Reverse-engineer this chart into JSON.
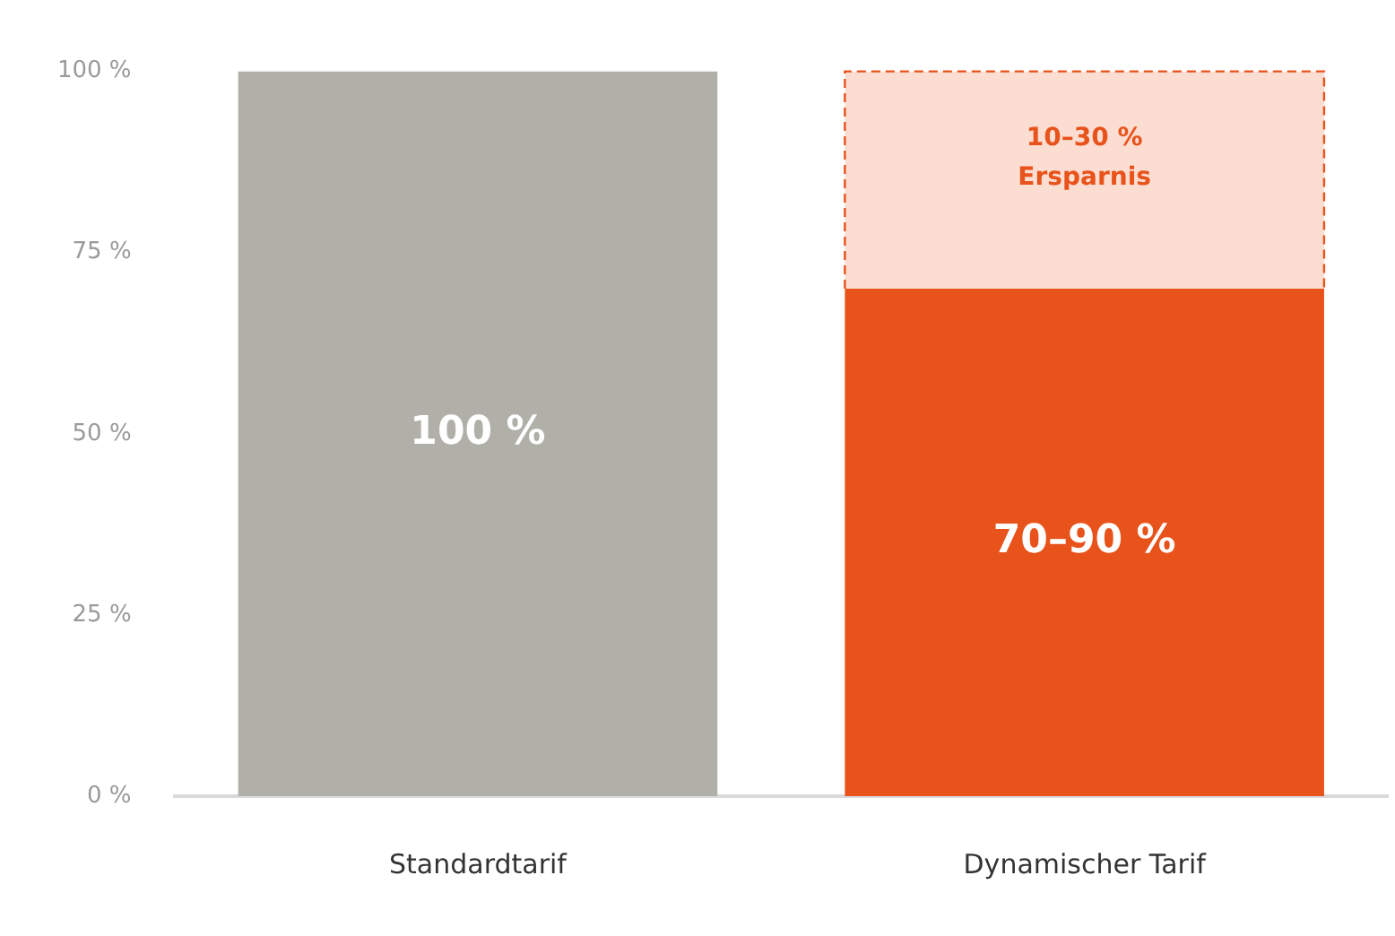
{
  "chart_data": {
    "type": "bar",
    "stacked": true,
    "categories": [
      "Standardtarif",
      "Dynamischer Tarif"
    ],
    "series": [
      {
        "colors": [
          "#b0afa8",
          "#e8521b"
        ],
        "values": [
          100,
          70
        ],
        "value_labels": [
          "100 %",
          "70–90 %"
        ]
      },
      {
        "color": "#fcddd1",
        "values": [
          null,
          30
        ],
        "line_style": "dashed"
      }
    ],
    "annotations": [
      "10–30 %\nErsparnis"
    ],
    "ylim": [
      0,
      100
    ],
    "yticks": [
      {
        "value": 0,
        "label": "0 %"
      },
      {
        "value": 25,
        "label": "25 %"
      },
      {
        "value": 50,
        "label": "50 %"
      },
      {
        "value": 75,
        "label": "75 %"
      },
      {
        "value": 100,
        "label": "100 %"
      }
    ],
    "grid": false,
    "legend": false
  }
}
